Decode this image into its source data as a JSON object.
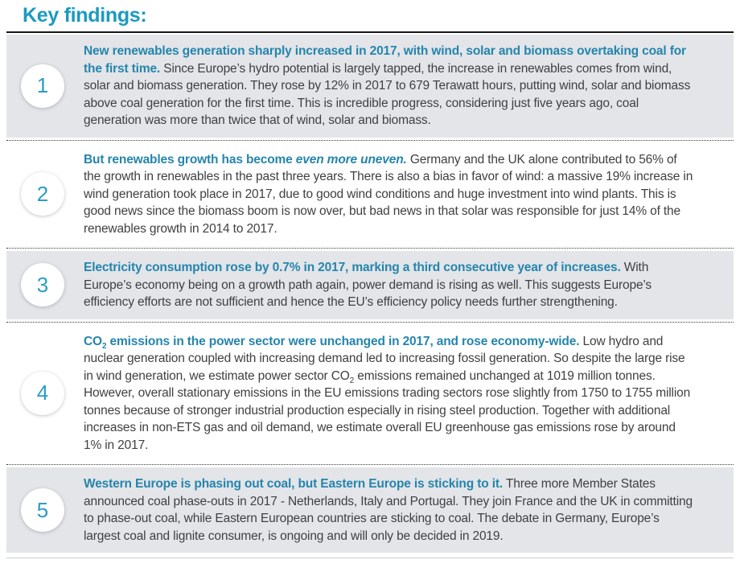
{
  "page": {
    "title": "Key findings:"
  },
  "colors": {
    "title_teal": "#1b9ac0",
    "headline_teal": "#2585ac",
    "body_text": "#3f4042",
    "row_shade": "#e3e5e9",
    "badge_number": "#2b9dc3"
  },
  "findings": [
    {
      "number": "1",
      "headline": "New renewables generation sharply increased in 2017, with wind, solar and biomass overtaking coal for the first time.",
      "body": "Since Europe’s hydro potential is largely tapped, the increase in renewables comes from wind, solar and biomass generation. They rose by 12% in 2017 to 679 Terawatt hours, putting wind, solar and biomass above coal generation for the first time. This is incredible progress, considering just five years ago, coal generation was more than twice that of wind, solar and biomass."
    },
    {
      "number": "2",
      "headline_start": "But renewables growth has become",
      "headline_italic": "even more uneven.",
      "body": "Germany and the UK alone contributed to 56% of the growth in renewables in the past three years. There is also a bias in favor of wind: a massive 19% increase in wind generation took place in 2017, due to good wind conditions and huge investment into wind plants. This is good news since the biomass boom is now over, but bad news in that solar was responsible for just 14% of the renewables growth in 2014 to 2017."
    },
    {
      "number": "3",
      "headline": "Electricity consumption rose by 0.7% in 2017, marking a third consecutive year of increases.",
      "body": "With Europe’s economy being on a growth path again, power demand is rising as well. This suggests Europe’s efficiency efforts are not sufficient and hence the EU’s efficiency policy needs further strengthening."
    },
    {
      "number": "4",
      "headline_pre": "CO",
      "headline_sub": "2",
      "headline_rest": "emissions in the power sector were unchanged in 2017, and rose economy-wide.",
      "body_part1": "Low hydro and nuclear generation coupled with increasing demand led to increasing fossil generation. So despite the large rise in wind generation, we estimate power sector CO",
      "body_sub": "2",
      "body_part2": "emissions remained unchanged at 1019 million tonnes. However, overall stationary emissions in the EU emissions trading sectors rose slightly from 1750 to 1755 million tonnes because of stronger industrial production especially in rising steel production. Together with additional increases in non-ETS gas and oil demand, we estimate overall EU greenhouse gas emissions rose by around 1% in 2017."
    },
    {
      "number": "5",
      "headline": "Western Europe is phasing out coal, but Eastern Europe is sticking to it.",
      "body": "Three more Member States announced coal phase-outs in 2017 - Netherlands, Italy and Portugal. They join France and the UK in committing to phase-out coal, while Eastern European countries are sticking to coal. The debate in Germany, Europe’s largest coal and lignite consumer, is ongoing and will only be decided in 2019."
    }
  ]
}
